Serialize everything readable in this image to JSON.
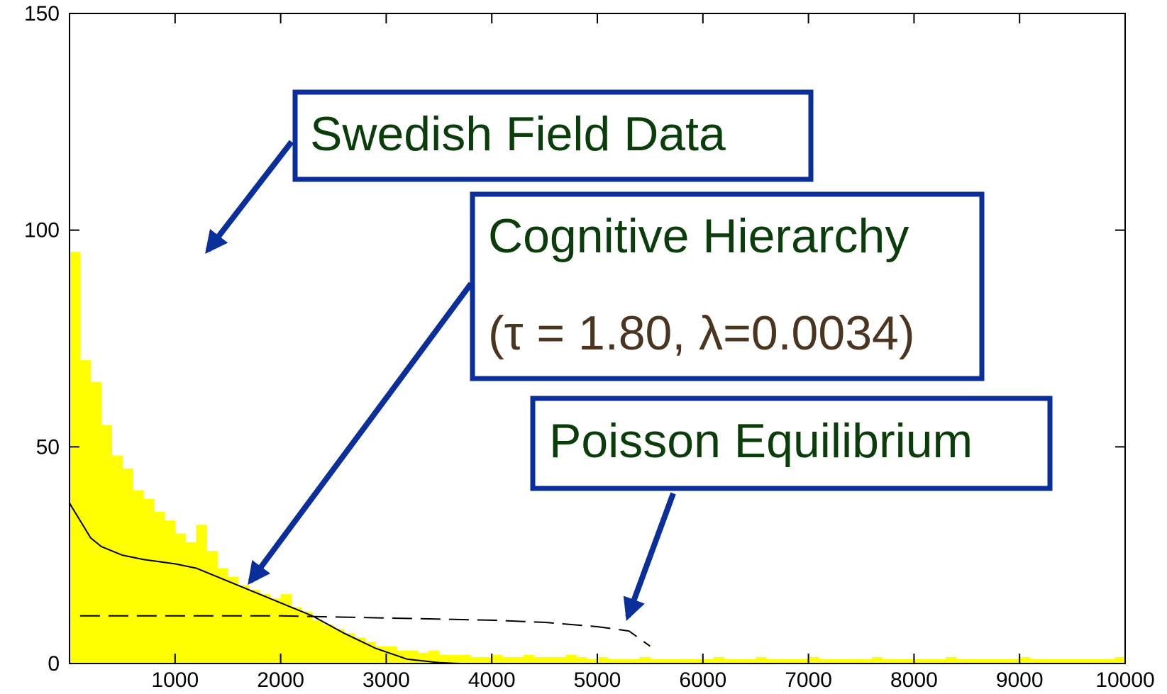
{
  "chart_data": {
    "type": "histogram",
    "bins": [
      0,
      100,
      200,
      300,
      400,
      500,
      600,
      700,
      800,
      900,
      1000,
      1100,
      1200,
      1300,
      1400,
      1500,
      1600,
      1700,
      1800,
      1900,
      2000,
      2100,
      2200,
      2300,
      2400,
      2500,
      2600,
      2700,
      2800,
      2900,
      3000,
      3100,
      3200,
      3300,
      3400,
      3500,
      3600,
      3700,
      3800,
      3900,
      4000,
      4100,
      4200,
      4300,
      4400,
      4500,
      4600,
      4700,
      4800,
      4900,
      5000,
      5100,
      5200,
      5300,
      5400,
      5500,
      5600,
      5700,
      5800,
      5900,
      6000,
      6100,
      6200,
      6300,
      6400,
      6500,
      6600,
      6700,
      6800,
      6900,
      7000,
      7100,
      7200,
      7300,
      7400,
      7500,
      7600,
      7700,
      7800,
      7900,
      8000,
      8100,
      8200,
      8300,
      8400,
      8500,
      8600,
      8700,
      8800,
      8900,
      9000,
      9100,
      9200,
      9300,
      9400,
      9500,
      9600,
      9700,
      9800,
      9900,
      10000
    ],
    "counts": [
      95,
      70,
      65,
      55,
      48,
      45,
      40,
      38,
      35,
      33,
      30,
      28,
      32,
      26,
      22,
      20,
      18,
      17,
      16,
      15,
      16,
      13,
      12,
      10,
      9,
      8,
      7,
      6,
      5,
      4,
      4,
      3,
      3,
      2.5,
      3,
      2,
      2,
      2,
      1.5,
      1.5,
      2,
      1.5,
      1.5,
      2,
      1.5,
      1.5,
      1.5,
      2,
      1.5,
      1,
      1.5,
      1,
      1,
      1,
      1.5,
      1,
      1,
      1,
      1,
      1,
      1,
      1.5,
      1,
      1,
      1,
      1.5,
      1,
      1,
      1,
      1,
      1.5,
      1,
      1,
      1,
      1,
      1,
      1.5,
      1,
      1,
      1,
      1,
      1,
      1,
      1.5,
      1,
      1,
      1,
      1,
      1,
      1,
      1.5,
      1,
      1,
      1,
      1,
      1,
      1,
      1,
      1,
      1.5
    ],
    "color": "#ffff00",
    "series": [
      {
        "name": "Cognitive Hierarchy",
        "color": "#000000",
        "style": "solid",
        "x": [
          0,
          100,
          200,
          300,
          500,
          700,
          1000,
          1200,
          1500,
          1800,
          2000,
          2300,
          2600,
          2900,
          3200,
          3500,
          3700
        ],
        "values": [
          37,
          33,
          29,
          27,
          25,
          24,
          23,
          22,
          19,
          16,
          14,
          11,
          7,
          3.5,
          1,
          0.2,
          0
        ]
      },
      {
        "name": "Poisson Equilibrium",
        "color": "#000000",
        "style": "dashed",
        "x": [
          100,
          1000,
          2000,
          3000,
          4000,
          4500,
          5000,
          5300,
          5500
        ],
        "values": [
          11,
          11,
          11,
          10.5,
          10,
          9.5,
          8.5,
          7.5,
          4
        ]
      }
    ],
    "annotations": [
      "Swedish Field Data",
      "Cognitive Hierarchy",
      "(τ = 1.80, λ=0.0034)",
      "Poisson Equilibrium"
    ],
    "xlim": [
      0,
      10000
    ],
    "xticks": [
      1000,
      2000,
      3000,
      4000,
      5000,
      6000,
      7000,
      8000,
      9000,
      10000
    ],
    "ylim": [
      0,
      150
    ],
    "yticks": [
      0,
      50,
      100,
      150
    ]
  }
}
